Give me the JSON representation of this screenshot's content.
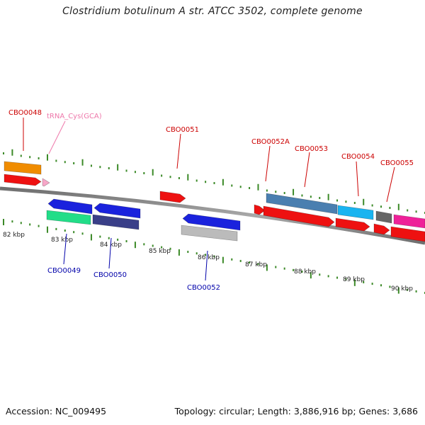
{
  "title": "Clostridium botulinum A str. ATCC 3502, complete genome",
  "footer": {
    "accession": "Accession: NC_009495",
    "topology": "Topology: circular; Length: 3,886,916 bp; Genes: 3,686"
  },
  "colors": {
    "backbone": "#8a8a8a",
    "tick_major": "#3c8a28",
    "tick_minor": "#3c8a28",
    "label_top": "#cc0000",
    "label_top_trna": "#ee77aa",
    "label_bottom": "#0000aa",
    "kbp_text": "#222222"
  },
  "upper_track_kbp": [
    {
      "label": "82 kbp"
    },
    {
      "label": "83 kbp"
    },
    {
      "label": "84 kbp"
    },
    {
      "label": "85 kbp"
    },
    {
      "label": "86 kbp"
    },
    {
      "label": "87 kbp"
    },
    {
      "label": "88 kbp"
    },
    {
      "label": "89 kbp"
    },
    {
      "label": "90 kbp"
    }
  ],
  "gene_labels_top": [
    {
      "id": "lbl-cbo0048",
      "text": "CBO0048",
      "color": "#cc0000"
    },
    {
      "id": "lbl-trna",
      "text": "tRNA_Cys(GCA)",
      "color": "#ee77aa"
    },
    {
      "id": "lbl-cbo0051",
      "text": "CBO0051",
      "color": "#cc0000"
    },
    {
      "id": "lbl-cbo0052a",
      "text": "CBO0052A",
      "color": "#cc0000"
    },
    {
      "id": "lbl-cbo0053",
      "text": "CBO0053",
      "color": "#cc0000"
    },
    {
      "id": "lbl-cbo0054",
      "text": "CBO0054",
      "color": "#cc0000"
    },
    {
      "id": "lbl-cbo0055",
      "text": "CBO0055",
      "color": "#cc0000"
    }
  ],
  "gene_labels_bottom": [
    {
      "id": "lbl-cbo0049",
      "text": "CBO0049",
      "color": "#0000aa"
    },
    {
      "id": "lbl-cbo0050",
      "text": "CBO0050",
      "color": "#0000aa"
    },
    {
      "id": "lbl-cbo0052",
      "text": "CBO0052",
      "color": "#0000aa"
    }
  ],
  "feature_colors": {
    "orange": "#f08c00",
    "red": "#ee1111",
    "pink": "#f7a7c8",
    "blue": "#1a22dd",
    "mint": "#22dd88",
    "slate": "#3a3f88",
    "silver": "#bbbbbb",
    "steel": "#4a7fb0",
    "cyan": "#19b4f0",
    "grey": "#666666",
    "magenta": "#ee2299"
  }
}
